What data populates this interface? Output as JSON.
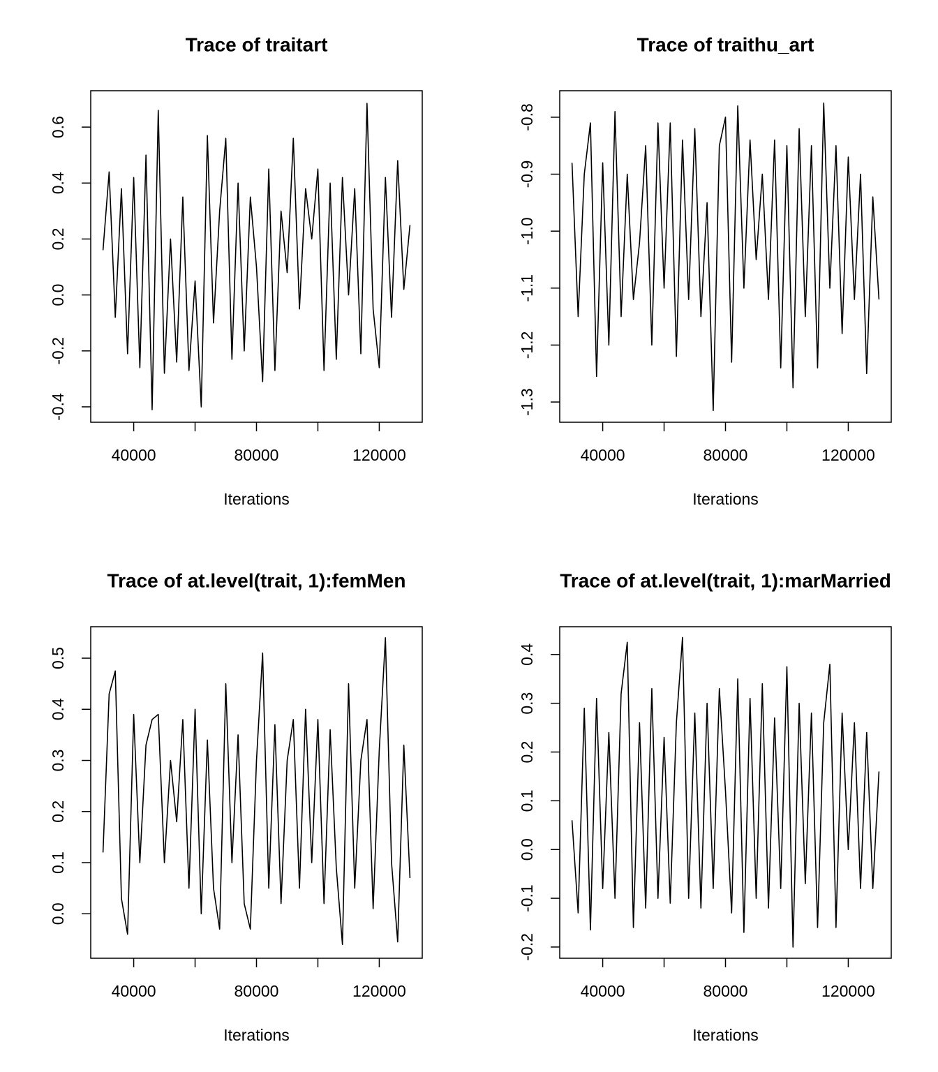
{
  "chart_data": [
    {
      "type": "line",
      "title": "Trace of traitart",
      "x_label": "Iterations",
      "color": "#000000",
      "x": [
        30000,
        32000,
        34000,
        36000,
        38000,
        40000,
        42000,
        44000,
        46000,
        48000,
        50000,
        52000,
        54000,
        56000,
        58000,
        60000,
        62000,
        64000,
        66000,
        68000,
        70000,
        72000,
        74000,
        76000,
        78000,
        80000,
        82000,
        84000,
        86000,
        88000,
        90000,
        92000,
        94000,
        96000,
        98000,
        100000,
        102000,
        104000,
        106000,
        108000,
        110000,
        112000,
        114000,
        116000,
        118000,
        120000,
        122000,
        124000,
        126000,
        128000,
        130000
      ],
      "values": [
        0.16,
        0.44,
        -0.08,
        0.38,
        -0.21,
        0.42,
        -0.26,
        0.5,
        -0.41,
        0.66,
        -0.28,
        0.2,
        -0.24,
        0.35,
        -0.27,
        0.05,
        -0.4,
        0.57,
        -0.1,
        0.3,
        0.56,
        -0.23,
        0.4,
        -0.2,
        0.35,
        0.1,
        -0.31,
        0.45,
        -0.27,
        0.3,
        0.08,
        0.56,
        -0.05,
        0.38,
        0.2,
        0.45,
        -0.27,
        0.4,
        -0.23,
        0.42,
        0.0,
        0.38,
        -0.21,
        0.685,
        -0.05,
        -0.26,
        0.42,
        -0.08,
        0.48,
        0.02,
        0.25
      ],
      "xlim": [
        26000,
        134000
      ],
      "xticks": [
        40000,
        80000,
        120000
      ],
      "xtick_marks": [
        40000,
        60000,
        80000,
        100000,
        120000
      ],
      "ylim": [
        -0.455,
        0.73
      ],
      "yticks": [
        -0.4,
        -0.2,
        {
          "value": 0,
          "label": "0.0"
        },
        0.2,
        0.4,
        0.6
      ]
    },
    {
      "type": "line",
      "title": "Trace of traithu_art",
      "x_label": "Iterations",
      "color": "#000000",
      "x": [
        30000,
        32000,
        34000,
        36000,
        38000,
        40000,
        42000,
        44000,
        46000,
        48000,
        50000,
        52000,
        54000,
        56000,
        58000,
        60000,
        62000,
        64000,
        66000,
        68000,
        70000,
        72000,
        74000,
        76000,
        78000,
        80000,
        82000,
        84000,
        86000,
        88000,
        90000,
        92000,
        94000,
        96000,
        98000,
        100000,
        102000,
        104000,
        106000,
        108000,
        110000,
        112000,
        114000,
        116000,
        118000,
        120000,
        122000,
        124000,
        126000,
        128000,
        130000
      ],
      "values": [
        -0.88,
        -1.15,
        -0.9,
        -0.81,
        -1.255,
        -0.88,
        -1.2,
        -0.79,
        -1.15,
        -0.9,
        -1.12,
        -1.02,
        -0.85,
        -1.2,
        -0.81,
        -1.1,
        -0.81,
        -1.22,
        -0.84,
        -1.12,
        -0.82,
        -1.15,
        -0.95,
        -1.315,
        -0.85,
        -0.8,
        -1.23,
        -0.78,
        -1.1,
        -0.84,
        -1.05,
        -0.9,
        -1.12,
        -0.84,
        -1.24,
        -0.85,
        -1.275,
        -0.82,
        -1.15,
        -0.85,
        -1.24,
        -0.775,
        -1.1,
        -0.85,
        -1.18,
        -0.87,
        -1.12,
        -0.9,
        -1.25,
        -0.94,
        -1.12
      ],
      "xlim": [
        26000,
        134000
      ],
      "xticks": [
        40000,
        80000,
        120000
      ],
      "xtick_marks": [
        40000,
        60000,
        80000,
        100000,
        120000
      ],
      "ylim": [
        -1.3355,
        -0.7535
      ],
      "yticks": [
        -1.3,
        -1.2,
        -1.1,
        {
          "value": -1,
          "label": "-1.0"
        },
        -0.9,
        -0.8
      ]
    },
    {
      "type": "line",
      "title": "Trace of at.level(trait, 1):femMen",
      "x_label": "Iterations",
      "color": "#000000",
      "x": [
        30000,
        32000,
        34000,
        36000,
        38000,
        40000,
        42000,
        44000,
        46000,
        48000,
        50000,
        52000,
        54000,
        56000,
        58000,
        60000,
        62000,
        64000,
        66000,
        68000,
        70000,
        72000,
        74000,
        76000,
        78000,
        80000,
        82000,
        84000,
        86000,
        88000,
        90000,
        92000,
        94000,
        96000,
        98000,
        100000,
        102000,
        104000,
        106000,
        108000,
        110000,
        112000,
        114000,
        116000,
        118000,
        120000,
        122000,
        124000,
        126000,
        128000,
        130000
      ],
      "values": [
        0.12,
        0.43,
        0.475,
        0.03,
        -0.04,
        0.39,
        0.1,
        0.33,
        0.38,
        0.39,
        0.1,
        0.3,
        0.18,
        0.38,
        0.05,
        0.4,
        0.0,
        0.34,
        0.05,
        -0.03,
        0.45,
        0.1,
        0.35,
        0.02,
        -0.03,
        0.3,
        0.51,
        0.05,
        0.37,
        0.02,
        0.3,
        0.38,
        0.05,
        0.4,
        0.1,
        0.38,
        0.02,
        0.36,
        0.09,
        -0.06,
        0.45,
        0.05,
        0.3,
        0.38,
        0.01,
        0.32,
        0.54,
        0.1,
        -0.055,
        0.33,
        0.07
      ],
      "xlim": [
        26000,
        134000
      ],
      "xticks": [
        40000,
        80000,
        120000
      ],
      "xtick_marks": [
        40000,
        60000,
        80000,
        100000,
        120000
      ],
      "ylim": [
        -0.087,
        0.5615
      ],
      "yticks": [
        {
          "value": 0,
          "label": "0.0"
        },
        0.1,
        0.2,
        0.3,
        0.4,
        0.5
      ]
    },
    {
      "type": "line",
      "title": "Trace of at.level(trait, 1):marMarried",
      "x_label": "Iterations",
      "color": "#000000",
      "x": [
        30000,
        32000,
        34000,
        36000,
        38000,
        40000,
        42000,
        44000,
        46000,
        48000,
        50000,
        52000,
        54000,
        56000,
        58000,
        60000,
        62000,
        64000,
        66000,
        68000,
        70000,
        72000,
        74000,
        76000,
        78000,
        80000,
        82000,
        84000,
        86000,
        88000,
        90000,
        92000,
        94000,
        96000,
        98000,
        100000,
        102000,
        104000,
        106000,
        108000,
        110000,
        112000,
        114000,
        116000,
        118000,
        120000,
        122000,
        124000,
        126000,
        128000,
        130000
      ],
      "values": [
        0.06,
        -0.13,
        0.29,
        -0.165,
        0.31,
        -0.08,
        0.24,
        -0.1,
        0.32,
        0.425,
        -0.16,
        0.26,
        -0.12,
        0.33,
        -0.1,
        0.23,
        -0.11,
        0.26,
        0.435,
        -0.1,
        0.28,
        -0.12,
        0.3,
        -0.08,
        0.33,
        0.12,
        -0.13,
        0.35,
        -0.17,
        0.31,
        -0.1,
        0.34,
        -0.12,
        0.27,
        -0.08,
        0.375,
        -0.2,
        0.3,
        -0.07,
        0.28,
        -0.16,
        0.26,
        0.38,
        -0.16,
        0.28,
        0.0,
        0.26,
        -0.08,
        0.24,
        -0.08,
        0.16
      ],
      "xlim": [
        26000,
        134000
      ],
      "xticks": [
        40000,
        80000,
        120000
      ],
      "xtick_marks": [
        40000,
        60000,
        80000,
        100000,
        120000
      ],
      "ylim": [
        -0.223,
        0.457
      ],
      "yticks": [
        -0.2,
        -0.1,
        {
          "value": 0,
          "label": "0.0"
        },
        0.1,
        0.2,
        0.3,
        0.4
      ]
    }
  ]
}
